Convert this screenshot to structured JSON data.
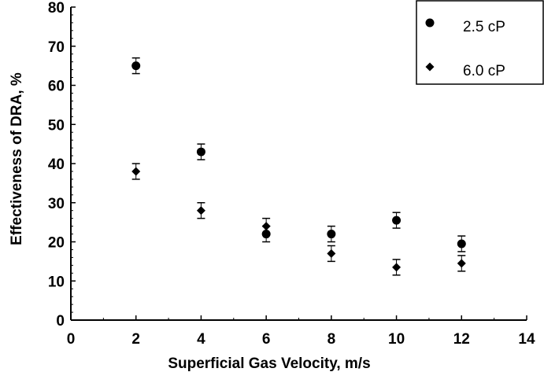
{
  "chart_data": {
    "type": "scatter",
    "title": "",
    "xlabel": "Superficial Gas Velocity, m/s",
    "ylabel": "Effectiveness of DRA, %",
    "xlim": [
      0,
      14
    ],
    "ylim": [
      0,
      80
    ],
    "xticks": [
      0,
      2,
      4,
      6,
      8,
      10,
      12,
      14
    ],
    "yticks": [
      0,
      10,
      20,
      30,
      40,
      50,
      60,
      70,
      80
    ],
    "grid": false,
    "legend_position": "top-right",
    "error_bars": true,
    "series": [
      {
        "name": "2.5 cP",
        "marker": "circle",
        "color": "#000000",
        "x": [
          2,
          4,
          6,
          8,
          10,
          12
        ],
        "y": [
          65,
          43,
          22,
          22,
          25.5,
          19.5
        ],
        "err": [
          2,
          2,
          2,
          2,
          2,
          2
        ]
      },
      {
        "name": "6.0 cP",
        "marker": "diamond",
        "color": "#000000",
        "x": [
          2,
          4,
          6,
          8,
          10,
          12
        ],
        "y": [
          38,
          28,
          24,
          17,
          13.5,
          14.5
        ],
        "err": [
          2,
          2,
          2,
          2,
          2,
          2
        ]
      }
    ]
  }
}
